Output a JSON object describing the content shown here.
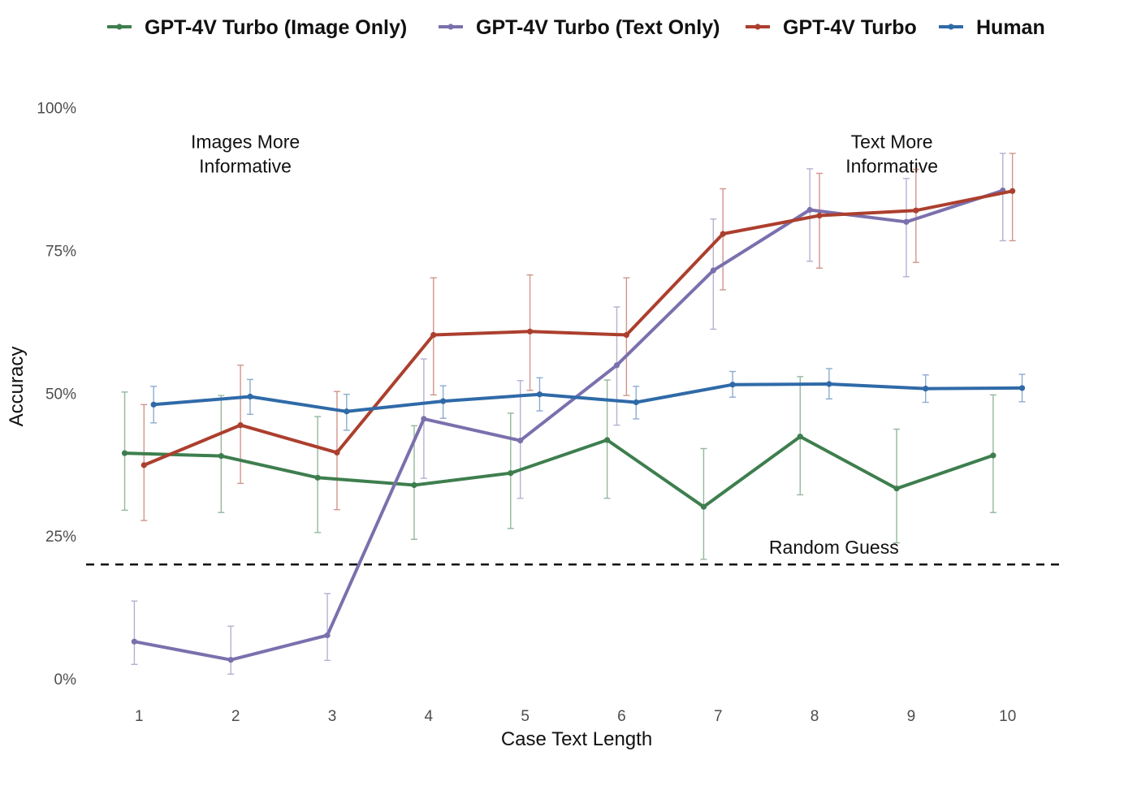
{
  "chart_data": {
    "type": "line",
    "xlabel": "Case Text Length",
    "ylabel": "Accuracy",
    "x": [
      1,
      2,
      3,
      4,
      5,
      6,
      7,
      8,
      9,
      10
    ],
    "x_ticks": [
      "1",
      "2",
      "3",
      "4",
      "5",
      "6",
      "7",
      "8",
      "9",
      "10"
    ],
    "xlim": [
      0.45,
      10.6
    ],
    "ylim": [
      -0.03,
      1.035
    ],
    "y_ticks": [
      {
        "value": 0,
        "label": "0%"
      },
      {
        "value": 0.25,
        "label": "25%"
      },
      {
        "value": 0.5,
        "label": "50%"
      },
      {
        "value": 0.75,
        "label": "75%"
      },
      {
        "value": 1.0,
        "label": "100%"
      }
    ],
    "grid": false,
    "legend": {
      "placement": "top",
      "orientation": "horizontal"
    },
    "series": [
      {
        "name": "GPT-4V Turbo (Image Only)",
        "color": "#3e7e4e",
        "values": [
          0.395,
          0.39,
          0.352,
          0.339,
          0.36,
          0.418,
          0.301,
          0.424,
          0.333,
          0.391
        ],
        "err_low": [
          0.295,
          0.291,
          0.256,
          0.244,
          0.263,
          0.316,
          0.209,
          0.322,
          0.238,
          0.291
        ],
        "err_high": [
          0.502,
          0.496,
          0.459,
          0.443,
          0.465,
          0.523,
          0.403,
          0.529,
          0.437,
          0.497
        ]
      },
      {
        "name": "GPT-4V Turbo (Text Only)",
        "color": "#7b70ad",
        "values": [
          0.065,
          0.033,
          0.076,
          0.455,
          0.417,
          0.549,
          0.715,
          0.821,
          0.8,
          0.855
        ],
        "err_low": [
          0.025,
          0.008,
          0.032,
          0.351,
          0.316,
          0.444,
          0.612,
          0.731,
          0.704,
          0.767
        ],
        "err_high": [
          0.136,
          0.092,
          0.149,
          0.56,
          0.522,
          0.651,
          0.805,
          0.893,
          0.876,
          0.92
        ]
      },
      {
        "name": "GPT-4V Turbo",
        "color": "#ac3f2e",
        "values": [
          0.374,
          0.444,
          0.396,
          0.602,
          0.608,
          0.602,
          0.779,
          0.811,
          0.82,
          0.854
        ],
        "err_low": [
          0.277,
          0.342,
          0.296,
          0.497,
          0.505,
          0.496,
          0.681,
          0.719,
          0.729,
          0.767
        ],
        "err_high": [
          0.48,
          0.549,
          0.503,
          0.702,
          0.707,
          0.702,
          0.858,
          0.885,
          0.892,
          0.92
        ]
      },
      {
        "name": "Human",
        "color": "#2f6aa8",
        "values": [
          0.48,
          0.494,
          0.468,
          0.486,
          0.498,
          0.484,
          0.515,
          0.516,
          0.508,
          0.509
        ],
        "err_low": [
          0.448,
          0.463,
          0.435,
          0.456,
          0.469,
          0.455,
          0.493,
          0.49,
          0.484,
          0.485
        ],
        "err_high": [
          0.512,
          0.524,
          0.498,
          0.513,
          0.527,
          0.512,
          0.538,
          0.543,
          0.532,
          0.533
        ]
      }
    ],
    "reference_line": {
      "value": 0.2,
      "label": "Random Guess",
      "style": "dashed",
      "color": "#111111"
    },
    "annotations": [
      {
        "lines": [
          "Images More",
          "Informative"
        ],
        "x": 2.1,
        "y": 0.96
      },
      {
        "lines": [
          "Text More",
          "Informative"
        ],
        "x": 8.8,
        "y": 0.96
      }
    ]
  }
}
